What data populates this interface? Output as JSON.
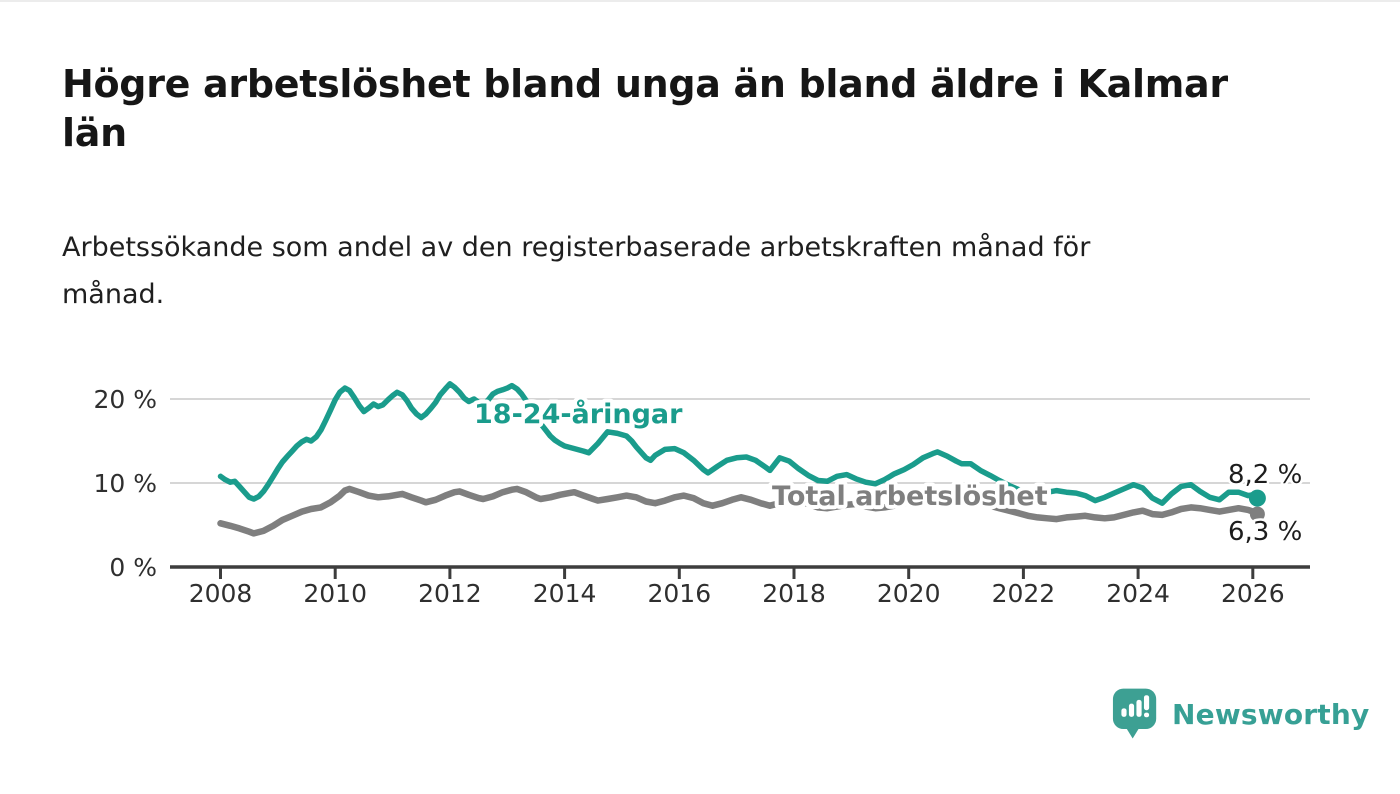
{
  "header": {
    "title_lines": [
      "Högre arbetslöshet bland unga än bland äldre i Kalmar",
      "län"
    ],
    "subtitle_lines": [
      "Arbetssökande som andel av den registerbaserade arbetskraften månad för",
      "månad."
    ]
  },
  "chart_data": {
    "type": "line",
    "title": "Högre arbetslöshet bland unga än bland äldre i Kalmar län",
    "subtitle": "Arbetssökande som andel av den registerbaserade arbetskraften månad för månad.",
    "xlabel": "",
    "ylabel": "",
    "unit": "%",
    "grid": "horizontal",
    "legend_position": "inline-labels",
    "xlim": [
      2007.1,
      2027.0
    ],
    "ylim": [
      0,
      23.2
    ],
    "x_ticks": [
      2008,
      2010,
      2012,
      2014,
      2016,
      2018,
      2020,
      2022,
      2024,
      2026
    ],
    "y_ticks": [
      {
        "value": 0,
        "label": "0 %"
      },
      {
        "value": 10,
        "label": "10 %"
      },
      {
        "value": 20,
        "label": "20 %"
      }
    ],
    "series": [
      {
        "name": "Total arbetslöshet",
        "color": "#7f7f7f",
        "end_label": "6,3 %",
        "end_value": 6.3,
        "points": [
          [
            2008.0,
            5.2
          ],
          [
            2008.17,
            4.9
          ],
          [
            2008.33,
            4.6
          ],
          [
            2008.5,
            4.2
          ],
          [
            2008.58,
            4.0
          ],
          [
            2008.75,
            4.3
          ],
          [
            2008.92,
            4.9
          ],
          [
            2009.08,
            5.6
          ],
          [
            2009.25,
            6.1
          ],
          [
            2009.42,
            6.6
          ],
          [
            2009.58,
            6.9
          ],
          [
            2009.75,
            7.1
          ],
          [
            2009.92,
            7.7
          ],
          [
            2010.08,
            8.5
          ],
          [
            2010.17,
            9.1
          ],
          [
            2010.25,
            9.3
          ],
          [
            2010.42,
            8.9
          ],
          [
            2010.58,
            8.5
          ],
          [
            2010.75,
            8.3
          ],
          [
            2010.92,
            8.4
          ],
          [
            2011.08,
            8.6
          ],
          [
            2011.17,
            8.7
          ],
          [
            2011.33,
            8.3
          ],
          [
            2011.5,
            7.9
          ],
          [
            2011.58,
            7.7
          ],
          [
            2011.75,
            8.0
          ],
          [
            2011.92,
            8.5
          ],
          [
            2012.08,
            8.9
          ],
          [
            2012.17,
            9.0
          ],
          [
            2012.33,
            8.6
          ],
          [
            2012.5,
            8.2
          ],
          [
            2012.58,
            8.1
          ],
          [
            2012.75,
            8.4
          ],
          [
            2012.92,
            8.9
          ],
          [
            2013.08,
            9.2
          ],
          [
            2013.17,
            9.3
          ],
          [
            2013.33,
            8.9
          ],
          [
            2013.5,
            8.3
          ],
          [
            2013.58,
            8.1
          ],
          [
            2013.75,
            8.3
          ],
          [
            2013.92,
            8.6
          ],
          [
            2014.08,
            8.8
          ],
          [
            2014.17,
            8.9
          ],
          [
            2014.33,
            8.5
          ],
          [
            2014.5,
            8.1
          ],
          [
            2014.58,
            7.9
          ],
          [
            2014.75,
            8.1
          ],
          [
            2014.92,
            8.3
          ],
          [
            2015.08,
            8.5
          ],
          [
            2015.25,
            8.3
          ],
          [
            2015.42,
            7.8
          ],
          [
            2015.58,
            7.6
          ],
          [
            2015.75,
            7.9
          ],
          [
            2015.92,
            8.3
          ],
          [
            2016.08,
            8.5
          ],
          [
            2016.25,
            8.2
          ],
          [
            2016.42,
            7.6
          ],
          [
            2016.58,
            7.3
          ],
          [
            2016.75,
            7.6
          ],
          [
            2016.92,
            8.0
          ],
          [
            2017.08,
            8.3
          ],
          [
            2017.25,
            8.0
          ],
          [
            2017.42,
            7.6
          ],
          [
            2017.58,
            7.3
          ],
          [
            2017.75,
            7.6
          ],
          [
            2017.92,
            7.8
          ],
          [
            2018.08,
            7.9
          ],
          [
            2018.25,
            7.5
          ],
          [
            2018.42,
            7.1
          ],
          [
            2018.58,
            7.0
          ],
          [
            2018.75,
            7.2
          ],
          [
            2018.92,
            7.4
          ],
          [
            2019.08,
            7.5
          ],
          [
            2019.25,
            7.2
          ],
          [
            2019.42,
            7.0
          ],
          [
            2019.58,
            7.1
          ],
          [
            2019.75,
            7.3
          ],
          [
            2019.92,
            7.6
          ],
          [
            2020.08,
            7.9
          ],
          [
            2020.25,
            8.4
          ],
          [
            2020.42,
            8.7
          ],
          [
            2020.58,
            8.6
          ],
          [
            2020.75,
            8.4
          ],
          [
            2020.92,
            8.2
          ],
          [
            2021.08,
            8.0
          ],
          [
            2021.25,
            7.7
          ],
          [
            2021.42,
            7.3
          ],
          [
            2021.58,
            7.0
          ],
          [
            2021.75,
            6.7
          ],
          [
            2021.92,
            6.4
          ],
          [
            2022.08,
            6.1
          ],
          [
            2022.25,
            5.9
          ],
          [
            2022.42,
            5.8
          ],
          [
            2022.58,
            5.7
          ],
          [
            2022.75,
            5.9
          ],
          [
            2022.92,
            6.0
          ],
          [
            2023.08,
            6.1
          ],
          [
            2023.25,
            5.9
          ],
          [
            2023.42,
            5.8
          ],
          [
            2023.58,
            5.9
          ],
          [
            2023.75,
            6.2
          ],
          [
            2023.92,
            6.5
          ],
          [
            2024.08,
            6.7
          ],
          [
            2024.25,
            6.3
          ],
          [
            2024.42,
            6.2
          ],
          [
            2024.58,
            6.5
          ],
          [
            2024.75,
            6.9
          ],
          [
            2024.92,
            7.1
          ],
          [
            2025.08,
            7.0
          ],
          [
            2025.25,
            6.8
          ],
          [
            2025.42,
            6.6
          ],
          [
            2025.58,
            6.8
          ],
          [
            2025.75,
            7.0
          ],
          [
            2025.92,
            6.8
          ],
          [
            2026.0,
            6.6
          ],
          [
            2026.08,
            6.3
          ]
        ]
      },
      {
        "name": "18-24-åringar",
        "color": "#1a9c8c",
        "end_label": "8,2 %",
        "end_value": 8.2,
        "points": [
          [
            2008.0,
            10.8
          ],
          [
            2008.08,
            10.4
          ],
          [
            2008.17,
            10.1
          ],
          [
            2008.25,
            10.2
          ],
          [
            2008.33,
            9.6
          ],
          [
            2008.42,
            8.9
          ],
          [
            2008.5,
            8.3
          ],
          [
            2008.58,
            8.1
          ],
          [
            2008.67,
            8.4
          ],
          [
            2008.75,
            9.0
          ],
          [
            2008.83,
            9.8
          ],
          [
            2008.92,
            10.8
          ],
          [
            2009.0,
            11.7
          ],
          [
            2009.08,
            12.5
          ],
          [
            2009.17,
            13.2
          ],
          [
            2009.25,
            13.8
          ],
          [
            2009.33,
            14.4
          ],
          [
            2009.42,
            14.9
          ],
          [
            2009.5,
            15.2
          ],
          [
            2009.58,
            15.0
          ],
          [
            2009.67,
            15.5
          ],
          [
            2009.75,
            16.3
          ],
          [
            2009.83,
            17.4
          ],
          [
            2009.92,
            18.7
          ],
          [
            2010.0,
            19.9
          ],
          [
            2010.08,
            20.8
          ],
          [
            2010.17,
            21.3
          ],
          [
            2010.25,
            21.0
          ],
          [
            2010.33,
            20.2
          ],
          [
            2010.42,
            19.2
          ],
          [
            2010.5,
            18.5
          ],
          [
            2010.58,
            18.9
          ],
          [
            2010.67,
            19.4
          ],
          [
            2010.75,
            19.1
          ],
          [
            2010.83,
            19.3
          ],
          [
            2010.92,
            19.9
          ],
          [
            2011.0,
            20.4
          ],
          [
            2011.08,
            20.8
          ],
          [
            2011.17,
            20.5
          ],
          [
            2011.25,
            19.8
          ],
          [
            2011.33,
            18.9
          ],
          [
            2011.42,
            18.2
          ],
          [
            2011.5,
            17.8
          ],
          [
            2011.58,
            18.2
          ],
          [
            2011.67,
            18.9
          ],
          [
            2011.75,
            19.6
          ],
          [
            2011.83,
            20.5
          ],
          [
            2011.92,
            21.2
          ],
          [
            2012.0,
            21.8
          ],
          [
            2012.08,
            21.4
          ],
          [
            2012.17,
            20.8
          ],
          [
            2012.25,
            20.1
          ],
          [
            2012.33,
            19.7
          ],
          [
            2012.42,
            20.0
          ],
          [
            2012.5,
            19.6
          ],
          [
            2012.58,
            19.3
          ],
          [
            2012.67,
            19.9
          ],
          [
            2012.75,
            20.6
          ],
          [
            2012.83,
            20.9
          ],
          [
            2012.92,
            21.1
          ],
          [
            2013.0,
            21.3
          ],
          [
            2013.08,
            21.6
          ],
          [
            2013.17,
            21.2
          ],
          [
            2013.25,
            20.6
          ],
          [
            2013.33,
            19.8
          ],
          [
            2013.42,
            18.9
          ],
          [
            2013.5,
            18.0
          ],
          [
            2013.58,
            17.1
          ],
          [
            2013.67,
            16.3
          ],
          [
            2013.75,
            15.6
          ],
          [
            2013.83,
            15.1
          ],
          [
            2013.92,
            14.7
          ],
          [
            2014.0,
            14.4
          ],
          [
            2014.17,
            14.1
          ],
          [
            2014.33,
            13.8
          ],
          [
            2014.42,
            13.6
          ],
          [
            2014.58,
            14.7
          ],
          [
            2014.75,
            16.1
          ],
          [
            2014.92,
            15.9
          ],
          [
            2015.08,
            15.6
          ],
          [
            2015.17,
            15.0
          ],
          [
            2015.25,
            14.3
          ],
          [
            2015.42,
            13.0
          ],
          [
            2015.5,
            12.7
          ],
          [
            2015.58,
            13.3
          ],
          [
            2015.75,
            14.0
          ],
          [
            2015.92,
            14.1
          ],
          [
            2016.08,
            13.6
          ],
          [
            2016.25,
            12.7
          ],
          [
            2016.42,
            11.6
          ],
          [
            2016.5,
            11.2
          ],
          [
            2016.67,
            12.0
          ],
          [
            2016.83,
            12.7
          ],
          [
            2017.0,
            13.0
          ],
          [
            2017.17,
            13.1
          ],
          [
            2017.33,
            12.7
          ],
          [
            2017.5,
            11.9
          ],
          [
            2017.58,
            11.5
          ],
          [
            2017.75,
            13.0
          ],
          [
            2017.92,
            12.6
          ],
          [
            2018.08,
            11.7
          ],
          [
            2018.25,
            10.9
          ],
          [
            2018.42,
            10.3
          ],
          [
            2018.58,
            10.2
          ],
          [
            2018.75,
            10.8
          ],
          [
            2018.92,
            11.0
          ],
          [
            2019.08,
            10.5
          ],
          [
            2019.25,
            10.1
          ],
          [
            2019.42,
            9.9
          ],
          [
            2019.58,
            10.4
          ],
          [
            2019.75,
            11.1
          ],
          [
            2019.92,
            11.6
          ],
          [
            2020.08,
            12.2
          ],
          [
            2020.25,
            13.0
          ],
          [
            2020.42,
            13.5
          ],
          [
            2020.5,
            13.7
          ],
          [
            2020.67,
            13.2
          ],
          [
            2020.83,
            12.6
          ],
          [
            2020.92,
            12.3
          ],
          [
            2021.08,
            12.3
          ],
          [
            2021.25,
            11.5
          ],
          [
            2021.42,
            10.9
          ],
          [
            2021.58,
            10.3
          ],
          [
            2021.75,
            9.7
          ],
          [
            2021.92,
            9.2
          ],
          [
            2022.08,
            8.7
          ],
          [
            2022.25,
            8.5
          ],
          [
            2022.42,
            8.9
          ],
          [
            2022.58,
            9.1
          ],
          [
            2022.75,
            8.9
          ],
          [
            2022.92,
            8.8
          ],
          [
            2023.08,
            8.5
          ],
          [
            2023.25,
            7.9
          ],
          [
            2023.42,
            8.3
          ],
          [
            2023.58,
            8.8
          ],
          [
            2023.75,
            9.3
          ],
          [
            2023.92,
            9.8
          ],
          [
            2024.08,
            9.4
          ],
          [
            2024.25,
            8.2
          ],
          [
            2024.42,
            7.6
          ],
          [
            2024.58,
            8.7
          ],
          [
            2024.75,
            9.6
          ],
          [
            2024.92,
            9.8
          ],
          [
            2025.08,
            9.0
          ],
          [
            2025.25,
            8.3
          ],
          [
            2025.42,
            8.0
          ],
          [
            2025.58,
            8.9
          ],
          [
            2025.75,
            8.9
          ],
          [
            2025.92,
            8.5
          ],
          [
            2026.0,
            8.6
          ],
          [
            2026.08,
            8.2
          ]
        ]
      }
    ]
  },
  "footer": {
    "brand": "Newsworthy",
    "logo_color": "#3da093",
    "wordmark_color": "#37a095"
  }
}
